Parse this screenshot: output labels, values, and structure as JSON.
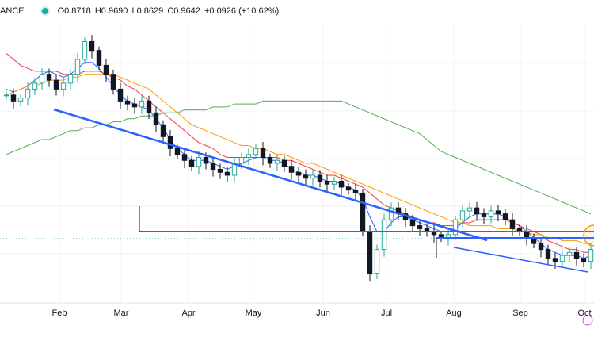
{
  "header": {
    "symbol": "ANCE",
    "open": "O0.8718",
    "high": "H0.9690",
    "low": "L0.8629",
    "close": "C0.9642",
    "change": "+0.0926 (+10.62%)"
  },
  "chart_data": {
    "type": "candlestick",
    "title": "",
    "xlabel": "",
    "ylabel": "",
    "x_tick_labels": [
      "Feb",
      "Mar",
      "Apr",
      "May",
      "Jun",
      "Jul",
      "Aug",
      "Sep",
      "Oct"
    ],
    "grid": true,
    "colors": {
      "up": "#26a69a",
      "down": "#131722",
      "ma_short": "#2962ff",
      "ma_mid": "#f23645",
      "ma_long": "#ff9800",
      "ma_200": "#4caf50",
      "trendline": "#2962ff",
      "highlight_circle": "#ff9800",
      "grid": "#f0f3fa"
    },
    "ylim": [
      0.78,
      1.72
    ],
    "series": [
      {
        "kind": "price",
        "values": [
          1.48,
          1.46,
          1.47,
          1.5,
          1.52,
          1.55,
          1.53,
          1.5,
          1.52,
          1.55,
          1.6,
          1.66,
          1.63,
          1.58,
          1.55,
          1.5,
          1.46,
          1.45,
          1.44,
          1.46,
          1.42,
          1.38,
          1.34,
          1.3,
          1.28,
          1.26,
          1.24,
          1.27,
          1.25,
          1.23,
          1.22,
          1.21,
          1.25,
          1.27,
          1.28,
          1.3,
          1.27,
          1.25,
          1.26,
          1.24,
          1.22,
          1.21,
          1.2,
          1.21,
          1.19,
          1.18,
          1.19,
          1.17,
          1.16,
          1.15,
          1.02,
          0.88,
          0.96,
          1.06,
          1.1,
          1.08,
          1.06,
          1.04,
          1.03,
          1.02,
          1.01,
          1.0,
          1.01,
          1.06,
          1.09,
          1.1,
          1.08,
          1.07,
          1.09,
          1.08,
          1.06,
          1.03,
          1.02,
          1.0,
          0.98,
          0.96,
          0.93,
          0.92,
          0.94,
          0.95,
          0.93,
          0.92,
          0.96
        ]
      },
      {
        "kind": "ma",
        "name": "",
        "values": [
          1.5,
          1.49,
          1.5,
          1.51,
          1.53,
          1.55,
          1.56,
          1.55,
          1.54,
          1.55,
          1.57,
          1.59,
          1.59,
          1.57,
          1.54,
          1.51,
          1.48,
          1.46,
          1.45,
          1.44,
          1.43,
          1.4,
          1.37,
          1.33,
          1.3,
          1.28,
          1.26,
          1.26,
          1.26,
          1.25,
          1.24,
          1.23,
          1.24,
          1.25,
          1.26,
          1.27,
          1.27,
          1.26,
          1.26,
          1.25,
          1.23,
          1.22,
          1.21,
          1.21,
          1.2,
          1.19,
          1.19,
          1.18,
          1.17,
          1.16,
          1.13,
          1.07,
          1.02,
          1.02,
          1.05,
          1.07,
          1.07,
          1.06,
          1.05,
          1.04,
          1.03,
          1.02,
          1.02,
          1.03,
          1.05,
          1.07,
          1.08,
          1.08,
          1.08,
          1.08,
          1.07,
          1.05,
          1.04,
          1.02,
          1.0,
          0.98,
          0.96,
          0.95,
          0.94,
          0.94,
          0.94,
          0.93,
          0.94
        ]
      },
      {
        "kind": "ma",
        "name": "",
        "values": [
          1.62,
          1.6,
          1.58,
          1.57,
          1.56,
          1.56,
          1.56,
          1.56,
          1.55,
          1.55,
          1.55,
          1.56,
          1.56,
          1.56,
          1.55,
          1.54,
          1.53,
          1.51,
          1.5,
          1.48,
          1.46,
          1.44,
          1.42,
          1.4,
          1.38,
          1.36,
          1.34,
          1.32,
          1.31,
          1.3,
          1.28,
          1.27,
          1.27,
          1.27,
          1.27,
          1.27,
          1.27,
          1.27,
          1.27,
          1.26,
          1.26,
          1.25,
          1.24,
          1.23,
          1.22,
          1.21,
          1.21,
          1.2,
          1.19,
          1.18,
          1.17,
          1.15,
          1.13,
          1.11,
          1.1,
          1.09,
          1.08,
          1.07,
          1.06,
          1.05,
          1.05,
          1.04,
          1.04,
          1.04,
          1.05,
          1.05,
          1.06,
          1.06,
          1.06,
          1.06,
          1.06,
          1.05,
          1.04,
          1.03,
          1.02,
          1.01,
          0.99,
          0.98,
          0.97,
          0.96,
          0.96,
          0.95,
          0.95
        ]
      },
      {
        "kind": "ma",
        "name": "",
        "values": [
          1.48,
          1.49,
          1.5,
          1.51,
          1.51,
          1.52,
          1.53,
          1.53,
          1.53,
          1.54,
          1.54,
          1.55,
          1.55,
          1.55,
          1.55,
          1.55,
          1.54,
          1.53,
          1.52,
          1.51,
          1.5,
          1.48,
          1.46,
          1.44,
          1.42,
          1.4,
          1.38,
          1.37,
          1.36,
          1.35,
          1.34,
          1.33,
          1.32,
          1.31,
          1.31,
          1.3,
          1.3,
          1.29,
          1.28,
          1.28,
          1.27,
          1.26,
          1.25,
          1.25,
          1.24,
          1.23,
          1.22,
          1.21,
          1.2,
          1.19,
          1.18,
          1.17,
          1.16,
          1.15,
          1.14,
          1.13,
          1.12,
          1.11,
          1.1,
          1.09,
          1.08,
          1.07,
          1.06,
          1.05,
          1.05,
          1.04,
          1.04,
          1.04,
          1.04,
          1.03,
          1.03,
          1.03,
          1.02,
          1.02,
          1.01,
          1.01,
          1.0,
          1.0,
          0.99,
          0.99,
          0.99,
          0.98,
          0.98
        ]
      },
      {
        "kind": "ma",
        "name": "",
        "values": [
          1.28,
          1.29,
          1.3,
          1.31,
          1.32,
          1.33,
          1.33,
          1.34,
          1.35,
          1.36,
          1.36,
          1.37,
          1.37,
          1.38,
          1.38,
          1.39,
          1.39,
          1.4,
          1.4,
          1.41,
          1.41,
          1.41,
          1.42,
          1.42,
          1.42,
          1.43,
          1.43,
          1.43,
          1.43,
          1.44,
          1.44,
          1.44,
          1.45,
          1.45,
          1.45,
          1.45,
          1.46,
          1.46,
          1.46,
          1.46,
          1.46,
          1.46,
          1.46,
          1.46,
          1.46,
          1.46,
          1.46,
          1.46,
          1.45,
          1.44,
          1.43,
          1.42,
          1.41,
          1.4,
          1.39,
          1.38,
          1.37,
          1.36,
          1.35,
          1.33,
          1.31,
          1.29,
          1.28,
          1.27,
          1.26,
          1.25,
          1.24,
          1.23,
          1.22,
          1.21,
          1.2,
          1.19,
          1.18,
          1.17,
          1.16,
          1.15,
          1.14,
          1.13,
          1.12,
          1.11,
          1.1,
          1.09,
          1.08
        ]
      }
    ]
  }
}
